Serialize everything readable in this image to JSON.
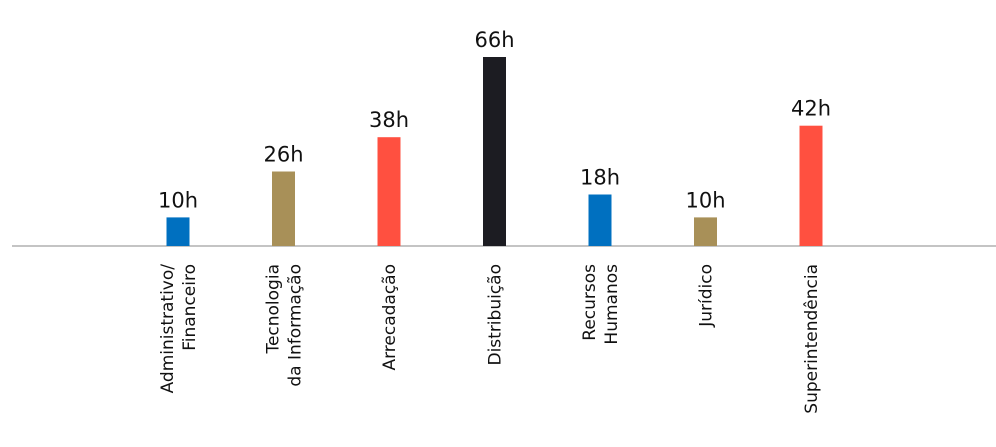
{
  "chart_data": {
    "type": "bar",
    "title": "",
    "xlabel": "",
    "ylabel": "",
    "unit": "h",
    "ylim": [
      0,
      66
    ],
    "categories": [
      [
        "Administrativo/",
        "Financeiro"
      ],
      [
        "Tecnologia",
        "da Informação"
      ],
      [
        "Arrecadação"
      ],
      [
        "Distribuição"
      ],
      [
        "Recursos",
        "Humanos"
      ],
      [
        "Jurídico"
      ],
      [
        "Superintendência"
      ]
    ],
    "values": [
      10,
      26,
      38,
      66,
      18,
      10,
      42
    ],
    "value_labels": [
      "10h",
      "26h",
      "38h",
      "66h",
      "18h",
      "10h",
      "42h"
    ],
    "colors": [
      "#0070c0",
      "#a89058",
      "#ff5040",
      "#1c1c22",
      "#0070c0",
      "#a89058",
      "#ff5040"
    ],
    "axis_color": "#b0b0b0",
    "grid": false,
    "legend": "none"
  }
}
